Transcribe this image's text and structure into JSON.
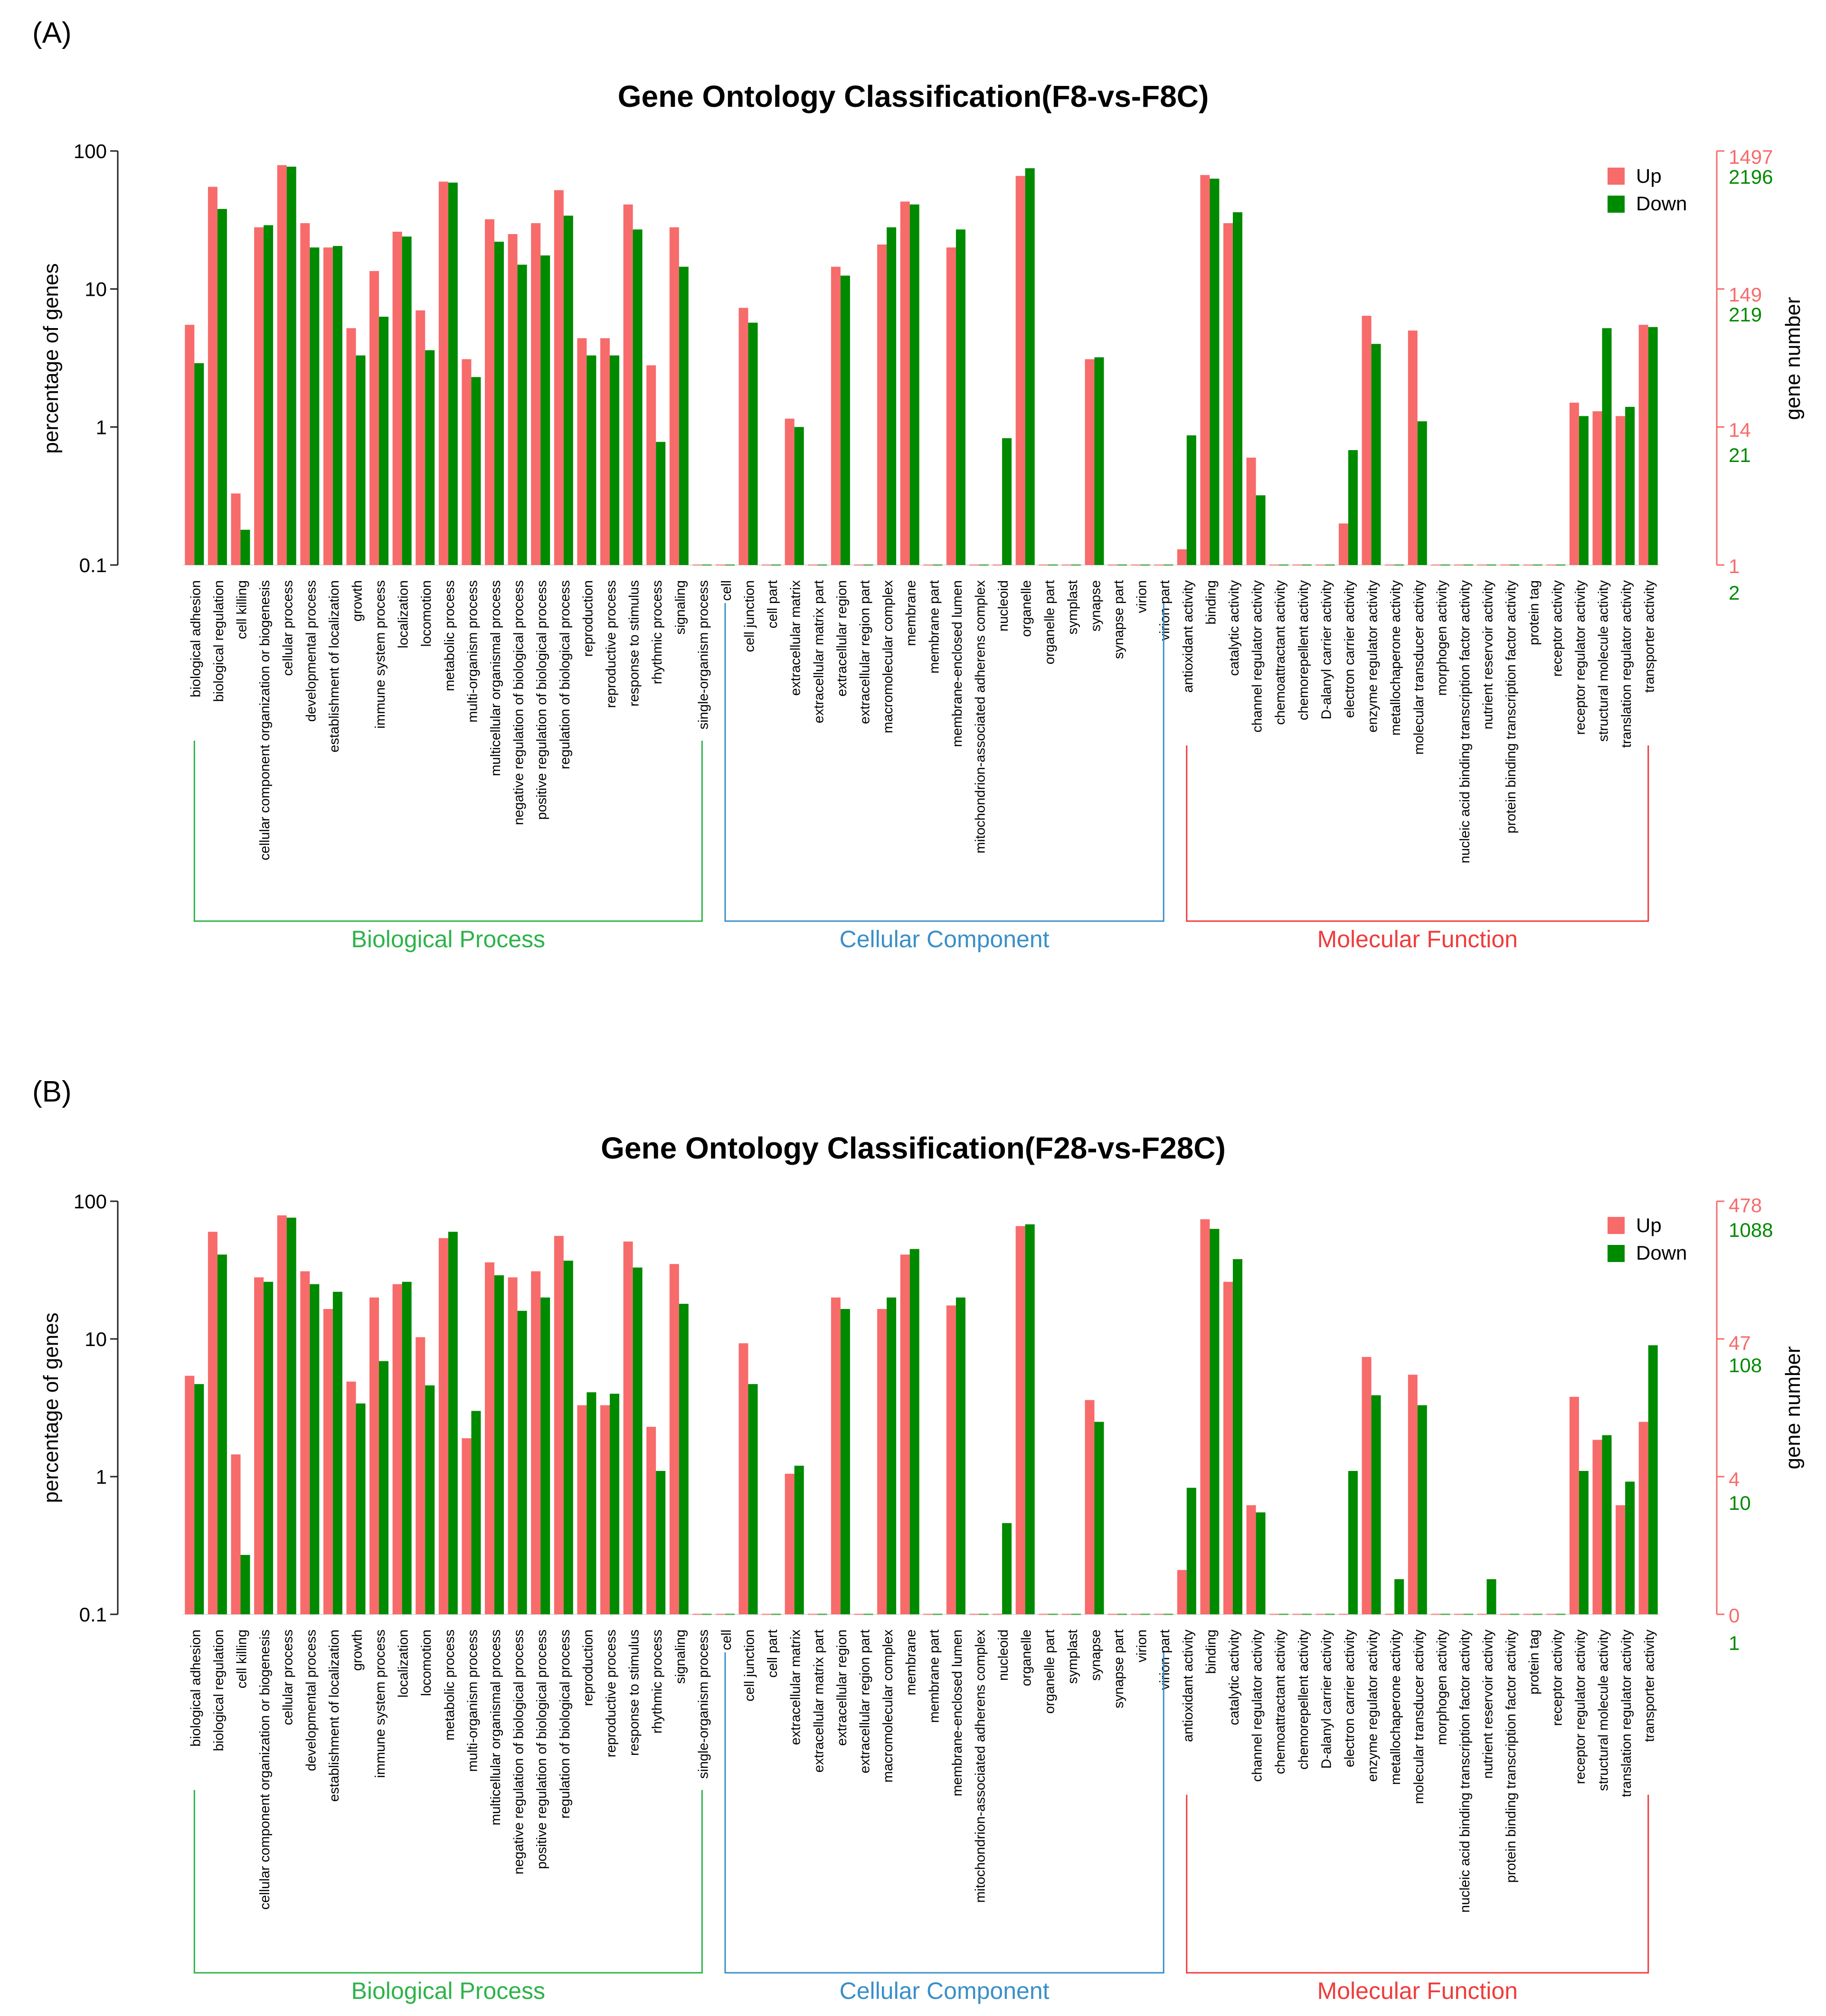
{
  "colors": {
    "up": "#f76b6b",
    "down": "#008a00",
    "bp": "#2db34a",
    "cc": "#3a8fc8",
    "mf": "#ef3c3c",
    "axis": "#222222"
  },
  "categories": [
    "biological adhesion",
    "biological regulation",
    "cell killing",
    "cellular component organization or biogenesis",
    "cellular process",
    "developmental process",
    "establishment of localization",
    "growth",
    "immune system process",
    "localization",
    "locomotion",
    "metabolic process",
    "multi-organism process",
    "multicellular organismal process",
    "negative regulation of biological process",
    "positive regulation of biological process",
    "regulation of biological process",
    "reproduction",
    "reproductive process",
    "response to stimulus",
    "rhythmic process",
    "signaling",
    "single-organism process",
    "cell",
    "cell junction",
    "cell part",
    "extracellular matrix",
    "extracellular matrix part",
    "extracellular region",
    "extracellular region part",
    "macromolecular complex",
    "membrane",
    "membrane part",
    "membrane-enclosed lumen",
    "mitochondrion-associated adherens complex",
    "nucleoid",
    "organelle",
    "organelle part",
    "symplast",
    "synapse",
    "synapse part",
    "virion",
    "virion part",
    "antioxidant activity",
    "binding",
    "catalytic activity",
    "channel regulator activity",
    "chemoattractant activity",
    "chemorepellent activity",
    "D-alanyl carrier activity",
    "electron carrier activity",
    "enzyme regulator activity",
    "metallochaperone activity",
    "molecular transducer activity",
    "morphogen activity",
    "nucleic acid binding transcription factor activity",
    "nutrient reservoir activity",
    "protein binding transcription factor activity",
    "protein tag",
    "receptor activity",
    "receptor regulator activity",
    "structural molecule activity",
    "translation regulator activity",
    "transporter activity"
  ],
  "groups": [
    {
      "name": "Biological Process",
      "start": 0,
      "end": 22,
      "color_key": "bp"
    },
    {
      "name": "Cellular Component",
      "start": 23,
      "end": 42,
      "color_key": "cc"
    },
    {
      "name": "Molecular Function",
      "start": 43,
      "end": 63,
      "color_key": "mf"
    }
  ],
  "charts": [
    {
      "panel_label": "(A)",
      "title": "Gene Ontology Classification(F8-vs-F8C)",
      "ylabel": "percentage of genes",
      "ylabel_right": "gene number",
      "yticks": [
        "100",
        "10",
        "1",
        "0.1"
      ],
      "right_ticks_up": [
        "1497",
        "149",
        "14",
        "1"
      ],
      "right_ticks_down": [
        "2196",
        "219",
        "21",
        "2"
      ],
      "legend": {
        "up": "Up",
        "down": "Down"
      }
    },
    {
      "panel_label": "(B)",
      "title": "Gene Ontology Classification(F28-vs-F28C)",
      "ylabel": "percentage of genes",
      "ylabel_right": "gene number",
      "yticks": [
        "100",
        "10",
        "1",
        "0.1"
      ],
      "right_ticks_up": [
        "478",
        "47",
        "4",
        "0"
      ],
      "right_ticks_down": [
        "1088",
        "108",
        "10",
        "1"
      ],
      "legend": {
        "up": "Up",
        "down": "Down"
      }
    }
  ],
  "chart_data": [
    {
      "type": "bar",
      "title": "Gene Ontology Classification(F8-vs-F8C)",
      "ylabel": "percentage of genes",
      "y_scale": "log",
      "ylim": [
        0.1,
        100
      ],
      "x": "categories",
      "series": [
        {
          "name": "Up",
          "values": [
            5.5,
            55,
            0.33,
            28,
            79,
            30,
            20,
            5.2,
            13.5,
            26,
            7,
            60,
            3.1,
            32,
            25,
            30,
            52,
            4.4,
            4.4,
            41,
            2.8,
            28,
            0,
            0,
            7.3,
            0,
            1.15,
            0,
            14.5,
            0,
            21,
            43,
            0,
            20,
            0,
            0,
            66,
            0,
            0,
            3.1,
            0,
            0,
            0,
            0.13,
            67,
            30,
            0.6,
            0,
            0,
            0,
            0.2,
            6.4,
            0,
            5,
            0,
            0,
            0,
            0,
            0,
            0,
            1.5,
            1.3,
            1.2,
            5.5
          ]
        },
        {
          "name": "Down",
          "values": [
            2.9,
            38,
            0.18,
            29,
            77,
            20,
            20.5,
            3.3,
            6.3,
            24,
            3.6,
            59,
            2.3,
            22,
            15,
            17.5,
            34,
            3.3,
            3.3,
            27,
            0.78,
            14.5,
            0,
            0,
            5.7,
            0,
            1.0,
            0,
            12.5,
            0,
            28,
            41,
            0,
            27,
            0,
            0.83,
            75,
            0,
            0,
            3.2,
            0,
            0,
            0,
            0.87,
            63,
            36,
            0.32,
            0,
            0,
            0,
            0.68,
            4,
            0,
            1.1,
            0,
            0,
            0,
            0,
            0,
            0,
            1.2,
            5.2,
            1.4,
            5.3
          ]
        }
      ]
    },
    {
      "type": "bar",
      "title": "Gene Ontology Classification(F28-vs-F28C)",
      "ylabel": "percentage of genes",
      "y_scale": "log",
      "ylim": [
        0.1,
        100
      ],
      "x": "categories",
      "series": [
        {
          "name": "Up",
          "values": [
            5.4,
            60,
            1.45,
            28,
            79,
            31,
            16.5,
            4.9,
            20,
            25,
            10.3,
            54,
            1.9,
            36,
            28,
            31,
            56,
            3.3,
            3.3,
            51,
            2.3,
            35,
            0,
            0,
            9.3,
            0,
            1.05,
            0,
            20,
            0,
            16.5,
            41,
            0,
            17.5,
            0,
            0,
            66,
            0,
            0,
            3.6,
            0,
            0,
            0,
            0.21,
            74,
            26,
            0.62,
            0,
            0,
            0,
            0,
            7.4,
            0,
            5.5,
            0,
            0,
            0,
            0,
            0,
            0,
            3.8,
            1.85,
            0.62,
            2.5
          ]
        },
        {
          "name": "Down",
          "values": [
            4.7,
            41,
            0.27,
            26,
            76,
            25,
            22,
            3.4,
            6.9,
            26,
            4.6,
            60,
            3,
            29,
            16,
            20,
            37,
            4.1,
            4,
            33,
            1.1,
            18,
            0,
            0,
            4.7,
            0,
            1.2,
            0,
            16.5,
            0,
            20,
            45,
            0,
            20,
            0,
            0.46,
            68,
            0,
            0,
            2.5,
            0,
            0,
            0,
            0.83,
            63,
            38,
            0.55,
            0,
            0,
            0,
            1.1,
            3.9,
            0.18,
            3.3,
            0,
            0,
            0.18,
            0,
            0,
            0,
            1.1,
            2,
            0.92,
            9
          ]
        }
      ]
    }
  ]
}
